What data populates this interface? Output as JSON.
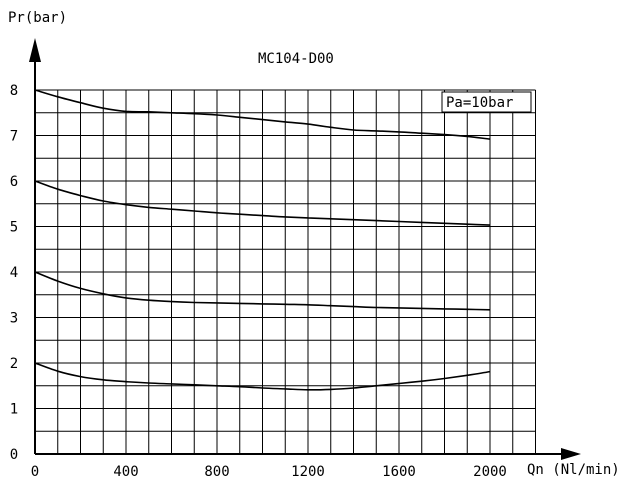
{
  "chart_data": {
    "type": "line",
    "title": "MC104-D00",
    "ylabel": "Pr(bar)",
    "xlabel": "Qn (Nl/min)",
    "annotation": "Pa=10bar",
    "xlim": [
      0,
      2200
    ],
    "ylim": [
      0,
      8
    ],
    "grid": true,
    "x_ticks": [
      0,
      400,
      800,
      1200,
      1600,
      2000
    ],
    "y_ticks": [
      0,
      1,
      2,
      3,
      4,
      5,
      6,
      7,
      8
    ],
    "series": [
      {
        "x": [
          0,
          100,
          200,
          300,
          400,
          500,
          600,
          700,
          800,
          900,
          1000,
          1100,
          1200,
          1300,
          1400,
          1500,
          1600,
          1700,
          1800,
          1900,
          2000
        ],
        "y": [
          8.0,
          7.85,
          7.72,
          7.6,
          7.53,
          7.52,
          7.5,
          7.48,
          7.45,
          7.4,
          7.35,
          7.3,
          7.25,
          7.18,
          7.12,
          7.1,
          7.08,
          7.05,
          7.02,
          6.98,
          6.92
        ]
      },
      {
        "x": [
          0,
          100,
          200,
          300,
          400,
          500,
          600,
          700,
          800,
          900,
          1000,
          1100,
          1200,
          1300,
          1400,
          1500,
          1600,
          1700,
          1800,
          1900,
          2000
        ],
        "y": [
          6.0,
          5.82,
          5.68,
          5.56,
          5.48,
          5.42,
          5.38,
          5.34,
          5.3,
          5.27,
          5.24,
          5.21,
          5.19,
          5.17,
          5.15,
          5.13,
          5.11,
          5.09,
          5.07,
          5.05,
          5.03
        ]
      },
      {
        "x": [
          0,
          100,
          200,
          300,
          400,
          500,
          600,
          700,
          800,
          900,
          1000,
          1100,
          1200,
          1300,
          1400,
          1500,
          1600,
          1700,
          1800,
          1900,
          2000
        ],
        "y": [
          4.0,
          3.8,
          3.64,
          3.52,
          3.43,
          3.38,
          3.35,
          3.33,
          3.32,
          3.31,
          3.3,
          3.29,
          3.28,
          3.26,
          3.24,
          3.22,
          3.21,
          3.2,
          3.19,
          3.18,
          3.17
        ]
      },
      {
        "x": [
          0,
          100,
          200,
          300,
          400,
          500,
          600,
          700,
          800,
          900,
          1000,
          1100,
          1200,
          1300,
          1400,
          1500,
          1600,
          1700,
          1800,
          1900,
          2000
        ],
        "y": [
          2.0,
          1.82,
          1.7,
          1.63,
          1.59,
          1.56,
          1.54,
          1.52,
          1.5,
          1.48,
          1.45,
          1.43,
          1.41,
          1.42,
          1.45,
          1.5,
          1.55,
          1.6,
          1.66,
          1.73,
          1.81
        ]
      }
    ]
  }
}
